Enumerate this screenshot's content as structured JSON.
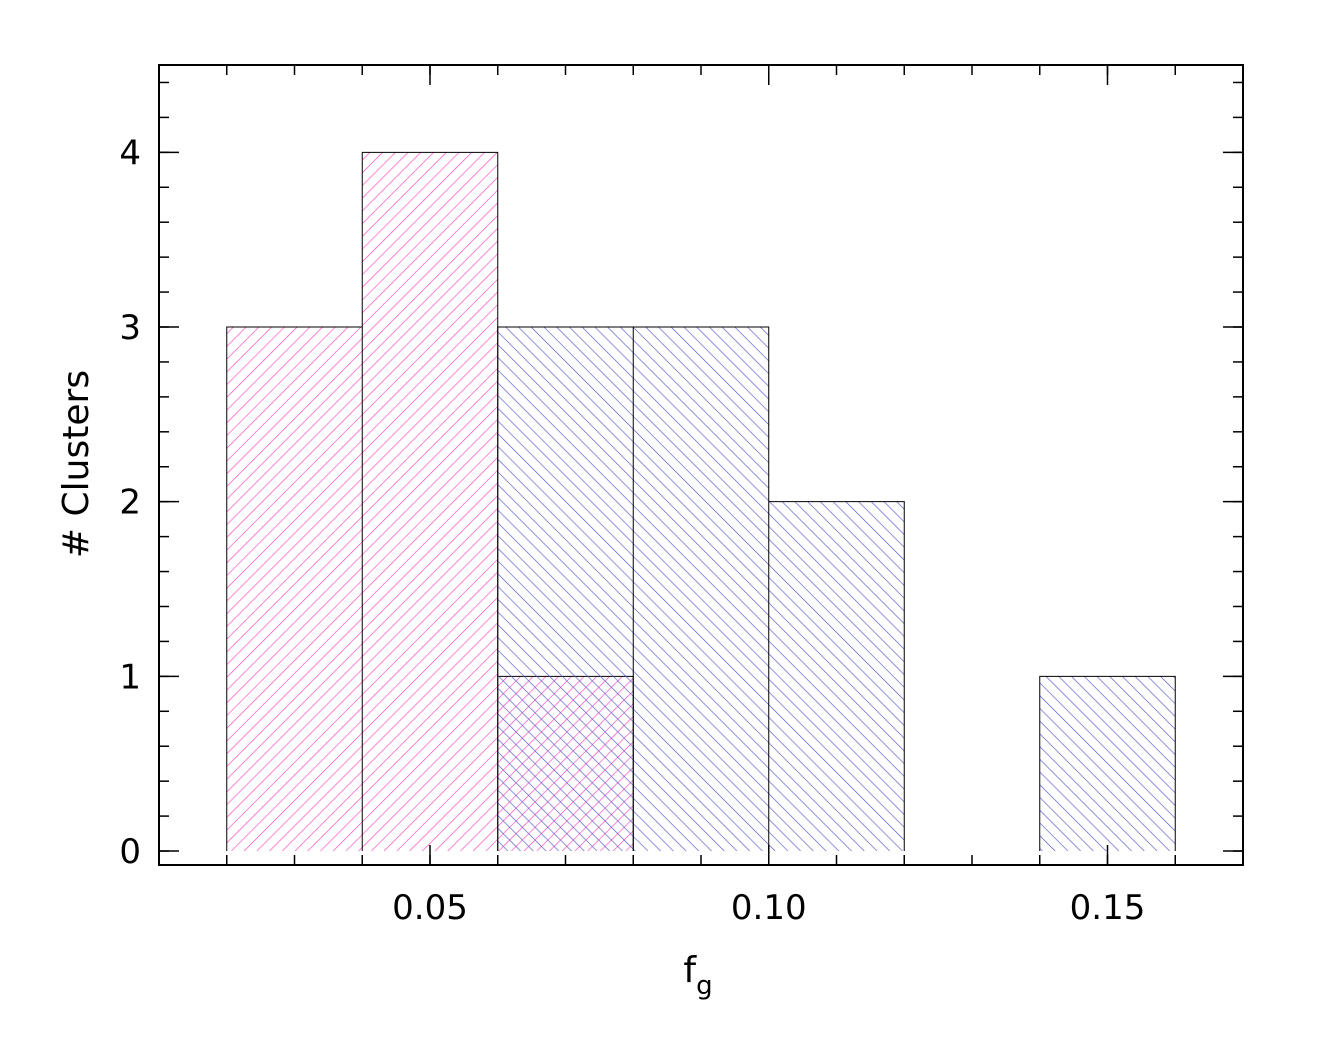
{
  "chart_data": {
    "type": "bar",
    "bin_edges": [
      0.02,
      0.04,
      0.06,
      0.08,
      0.1,
      0.12,
      0.14,
      0.16
    ],
    "series": [
      {
        "color": "#ff44bb",
        "hatch": "diagonal-down",
        "values": [
          3,
          4,
          1,
          0,
          0,
          0,
          0
        ]
      },
      {
        "color": "#5555cc",
        "hatch": "diagonal-up",
        "values": [
          0,
          0,
          3,
          3,
          2,
          0,
          1
        ]
      }
    ],
    "xlabel": "f",
    "xlabel_sub": "g",
    "ylabel": "# Clusters",
    "xlim": [
      0.01,
      0.17
    ],
    "ylim": [
      -0.08,
      4.5
    ],
    "x_ticks": [
      {
        "value": 0.05,
        "label": "0.05"
      },
      {
        "value": 0.1,
        "label": "0.10"
      },
      {
        "value": 0.15,
        "label": "0.15"
      }
    ],
    "y_ticks": [
      {
        "value": 0,
        "label": "0"
      },
      {
        "value": 1,
        "label": "1"
      },
      {
        "value": 2,
        "label": "2"
      },
      {
        "value": 3,
        "label": "3"
      },
      {
        "value": 4,
        "label": "4"
      }
    ],
    "x_minor_step": 0.01,
    "y_minor_step": 0.2,
    "grid": false
  }
}
